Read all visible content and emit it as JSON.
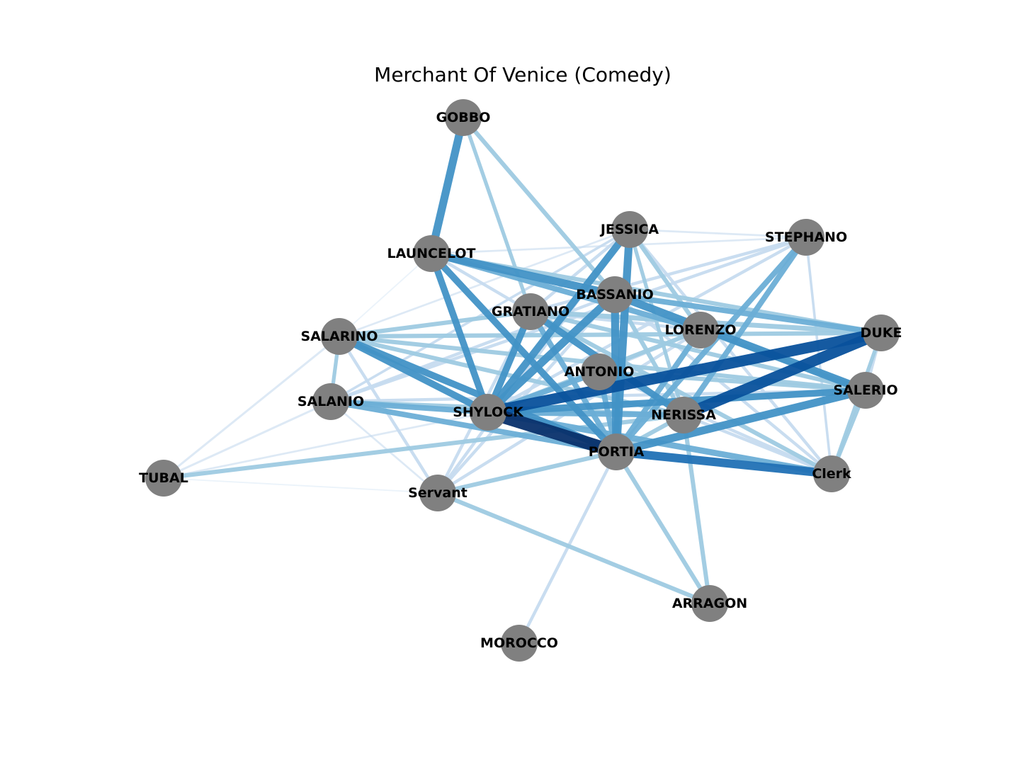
{
  "title": "Merchant Of Venice (Comedy)",
  "node_color": "#808080",
  "edge_colormap": [
    "#deebf7",
    "#c6dbef",
    "#9ecae1",
    "#6baed6",
    "#4292c6",
    "#2171b5",
    "#08519c",
    "#08306b"
  ],
  "nodes": [
    {
      "id": "GOBBO",
      "label": "GOBBO"
    },
    {
      "id": "JESSICA",
      "label": "JESSICA"
    },
    {
      "id": "STEPHANO",
      "label": "STEPHANO"
    },
    {
      "id": "LAUNCELOT",
      "label": "LAUNCELOT"
    },
    {
      "id": "BASSANIO",
      "label": "BASSANIO"
    },
    {
      "id": "GRATIANO",
      "label": "GRATIANO"
    },
    {
      "id": "LORENZO",
      "label": "LORENZO"
    },
    {
      "id": "DUKE",
      "label": "DUKE"
    },
    {
      "id": "SALARINO",
      "label": "SALARINO"
    },
    {
      "id": "ANTONIO",
      "label": "ANTONIO"
    },
    {
      "id": "SALERIO",
      "label": "SALERIO"
    },
    {
      "id": "SALANIO",
      "label": "SALANIO"
    },
    {
      "id": "SHYLOCK",
      "label": "SHYLOCK"
    },
    {
      "id": "NERISSA",
      "label": "NERISSA"
    },
    {
      "id": "PORTIA",
      "label": "PORTIA"
    },
    {
      "id": "TUBAL",
      "label": "TUBAL"
    },
    {
      "id": "Clerk",
      "label": "Clerk"
    },
    {
      "id": "Servant",
      "label": "Servant"
    },
    {
      "id": "ARRAGON",
      "label": "ARRAGON"
    },
    {
      "id": "MOROCCO",
      "label": "MOROCCO"
    }
  ],
  "edges": [
    {
      "source": "SHYLOCK",
      "target": "PORTIA",
      "weight": 1.0
    },
    {
      "source": "SHYLOCK",
      "target": "DUKE",
      "weight": 0.85
    },
    {
      "source": "NERISSA",
      "target": "DUKE",
      "weight": 0.85
    },
    {
      "source": "GOBBO",
      "target": "LAUNCELOT",
      "weight": 0.6
    },
    {
      "source": "JESSICA",
      "target": "PORTIA",
      "weight": 0.6
    },
    {
      "source": "JESSICA",
      "target": "SHYLOCK",
      "weight": 0.55
    },
    {
      "source": "BASSANIO",
      "target": "PORTIA",
      "weight": 0.6
    },
    {
      "source": "LAUNCELOT",
      "target": "BASSANIO",
      "weight": 0.6
    },
    {
      "source": "LAUNCELOT",
      "target": "SHYLOCK",
      "weight": 0.5
    },
    {
      "source": "LAUNCELOT",
      "target": "PORTIA",
      "weight": 0.5
    },
    {
      "source": "PORTIA",
      "target": "Clerk",
      "weight": 0.65
    },
    {
      "source": "PORTIA",
      "target": "SALERIO",
      "weight": 0.6
    },
    {
      "source": "BASSANIO",
      "target": "SALERIO",
      "weight": 0.6
    },
    {
      "source": "SHYLOCK",
      "target": "BASSANIO",
      "weight": 0.6
    },
    {
      "source": "SALARINO",
      "target": "SHYLOCK",
      "weight": 0.5
    },
    {
      "source": "SALARINO",
      "target": "PORTIA",
      "weight": 0.5
    },
    {
      "source": "GRATIANO",
      "target": "SHYLOCK",
      "weight": 0.5
    },
    {
      "source": "GRATIANO",
      "target": "NERISSA",
      "weight": 0.5
    },
    {
      "source": "SHYLOCK",
      "target": "SALERIO",
      "weight": 0.5
    },
    {
      "source": "SHYLOCK",
      "target": "Clerk",
      "weight": 0.45
    },
    {
      "source": "STEPHANO",
      "target": "PORTIA",
      "weight": 0.4
    },
    {
      "source": "STEPHANO",
      "target": "NERISSA",
      "weight": 0.4
    },
    {
      "source": "SHYLOCK",
      "target": "NERISSA",
      "weight": 0.4
    },
    {
      "source": "SALANIO",
      "target": "PORTIA",
      "weight": 0.4
    },
    {
      "source": "BASSANIO",
      "target": "DUKE",
      "weight": 0.4
    },
    {
      "source": "GRATIANO",
      "target": "DUKE",
      "weight": 0.35
    },
    {
      "source": "SALARINO",
      "target": "DUKE",
      "weight": 0.3
    },
    {
      "source": "LAUNCELOT",
      "target": "DUKE",
      "weight": 0.3
    },
    {
      "source": "LAUNCELOT",
      "target": "LORENZO",
      "weight": 0.4
    },
    {
      "source": "GOBBO",
      "target": "BASSANIO",
      "weight": 0.3
    },
    {
      "source": "GOBBO",
      "target": "GRATIANO",
      "weight": 0.25
    },
    {
      "source": "TUBAL",
      "target": "NERISSA",
      "weight": 0.3
    },
    {
      "source": "TUBAL",
      "target": "SALARINO",
      "weight": 0.12
    },
    {
      "source": "TUBAL",
      "target": "SALANIO",
      "weight": 0.12
    },
    {
      "source": "TUBAL",
      "target": "Servant",
      "weight": 0.05
    },
    {
      "source": "Servant",
      "target": "ARRAGON",
      "weight": 0.3
    },
    {
      "source": "Servant",
      "target": "PORTIA",
      "weight": 0.3
    },
    {
      "source": "Servant",
      "target": "BASSANIO",
      "weight": 0.2
    },
    {
      "source": "Servant",
      "target": "GRATIANO",
      "weight": 0.2
    },
    {
      "source": "Servant",
      "target": "LORENZO",
      "weight": 0.2
    },
    {
      "source": "Servant",
      "target": "JESSICA",
      "weight": 0.2
    },
    {
      "source": "Servant",
      "target": "SALARINO",
      "weight": 0.2
    },
    {
      "source": "Servant",
      "target": "SALANIO",
      "weight": 0.1
    },
    {
      "source": "PORTIA",
      "target": "ARRAGON",
      "weight": 0.3
    },
    {
      "source": "NERISSA",
      "target": "ARRAGON",
      "weight": 0.3
    },
    {
      "source": "PORTIA",
      "target": "MOROCCO",
      "weight": 0.2
    },
    {
      "source": "SALARINO",
      "target": "SALERIO",
      "weight": 0.3
    },
    {
      "source": "SALARINO",
      "target": "GRATIANO",
      "weight": 0.3
    },
    {
      "source": "SALARINO",
      "target": "SALANIO",
      "weight": 0.25
    },
    {
      "source": "SALARINO",
      "target": "NERISSA",
      "weight": 0.3
    },
    {
      "source": "SALANIO",
      "target": "SHYLOCK",
      "weight": 0.4
    },
    {
      "source": "SALANIO",
      "target": "BASSANIO",
      "weight": 0.2
    },
    {
      "source": "SALANIO",
      "target": "NERISSA",
      "weight": 0.3
    },
    {
      "source": "SALANIO",
      "target": "JESSICA",
      "weight": 0.15
    },
    {
      "source": "JESSICA",
      "target": "STEPHANO",
      "weight": 0.1
    },
    {
      "source": "JESSICA",
      "target": "LORENZO",
      "weight": 0.3
    },
    {
      "source": "JESSICA",
      "target": "Clerk",
      "weight": 0.2
    },
    {
      "source": "LAUNCELOT",
      "target": "STEPHANO",
      "weight": 0.1
    },
    {
      "source": "LAUNCELOT",
      "target": "GRATIANO",
      "weight": 0.2
    },
    {
      "source": "GRATIANO",
      "target": "PORTIA",
      "weight": 0.4
    },
    {
      "source": "GRATIANO",
      "target": "STEPHANO",
      "weight": 0.2
    },
    {
      "source": "GRATIANO",
      "target": "Clerk",
      "weight": 0.3
    },
    {
      "source": "GRATIANO",
      "target": "SALERIO",
      "weight": 0.3
    },
    {
      "source": "ANTONIO",
      "target": "PORTIA",
      "weight": 0.4
    },
    {
      "source": "ANTONIO",
      "target": "SHYLOCK",
      "weight": 0.4
    },
    {
      "source": "ANTONIO",
      "target": "SALERIO",
      "weight": 0.3
    },
    {
      "source": "ANTONIO",
      "target": "Clerk",
      "weight": 0.2
    },
    {
      "source": "ANTONIO",
      "target": "LORENZO",
      "weight": 0.2
    },
    {
      "source": "LORENZO",
      "target": "SHYLOCK",
      "weight": 0.3
    },
    {
      "source": "LORENZO",
      "target": "SALERIO",
      "weight": 0.3
    },
    {
      "source": "LORENZO",
      "target": "PORTIA",
      "weight": 0.4
    },
    {
      "source": "STEPHANO",
      "target": "SHYLOCK",
      "weight": 0.2
    },
    {
      "source": "STEPHANO",
      "target": "SALANIO",
      "weight": 0.2
    },
    {
      "source": "STEPHANO",
      "target": "Clerk",
      "weight": 0.15
    },
    {
      "source": "DUKE",
      "target": "SALERIO",
      "weight": 0.2
    },
    {
      "source": "DUKE",
      "target": "Clerk",
      "weight": 0.25
    },
    {
      "source": "SALERIO",
      "target": "Clerk",
      "weight": 0.25
    },
    {
      "source": "NERISSA",
      "target": "Clerk",
      "weight": 0.2
    },
    {
      "source": "NERISSA",
      "target": "PORTIA",
      "weight": 0.3
    },
    {
      "source": "BASSANIO",
      "target": "NERISSA",
      "weight": 0.3
    },
    {
      "source": "JESSICA",
      "target": "NERISSA",
      "weight": 0.25
    },
    {
      "source": "JESSICA",
      "target": "SALARINO",
      "weight": 0.1
    },
    {
      "source": "SALARINO",
      "target": "LAUNCELOT",
      "weight": 0.05
    },
    {
      "source": "SALANIO",
      "target": "SALERIO",
      "weight": 0.2
    },
    {
      "source": "BASSANIO",
      "target": "Clerk",
      "weight": 0.2
    },
    {
      "source": "GRATIANO",
      "target": "LORENZO",
      "weight": 0.2
    },
    {
      "source": "JESSICA",
      "target": "GRATIANO",
      "weight": 0.2
    },
    {
      "source": "TUBAL",
      "target": "SHYLOCK",
      "weight": 0.1
    }
  ]
}
